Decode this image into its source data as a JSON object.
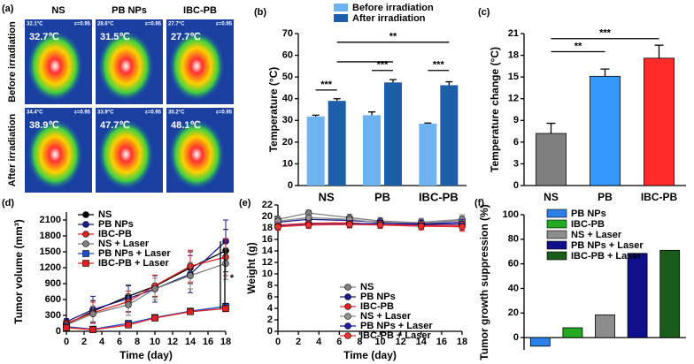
{
  "panel_labels": [
    "(a)",
    "(b)",
    "(c)",
    "(d)",
    "(e)",
    "(f)"
  ],
  "thermal_images": {
    "columns": [
      "NS",
      "PB NPs",
      "IBC-PB"
    ],
    "rows": [
      "Before irradiation",
      "After irradiation"
    ],
    "readings": [
      [
        "32.7℃",
        "31.5℃",
        "27.7℃"
      ],
      [
        "38.9℃",
        "47.7℃",
        "48.1℃"
      ]
    ],
    "corner": [
      [
        "32.1°C",
        "28.6°C",
        "27.7°C"
      ],
      [
        "34.4°C",
        "33.9°C",
        "30.2°C"
      ]
    ],
    "emissivity": "ε=0.95"
  },
  "chart_data": [
    {
      "type": "bar",
      "ylabel": "Temperature (°C)",
      "categories": [
        "NS",
        "PB",
        "IBC-PB"
      ],
      "series": [
        {
          "name": "Before irradiation",
          "color": "#6db3f2",
          "values": [
            31.8,
            32.4,
            28.5
          ],
          "errors": [
            0.6,
            1.5,
            0.3
          ]
        },
        {
          "name": "After irradiation",
          "color": "#1c5fa8",
          "values": [
            39.0,
            47.5,
            46.2
          ],
          "errors": [
            1.0,
            1.3,
            1.6
          ]
        }
      ],
      "ylim": [
        0,
        70
      ],
      "yticks": [
        0,
        10,
        20,
        30,
        40,
        50,
        60,
        70
      ],
      "annotations": [
        "***",
        "**",
        "***",
        "***"
      ]
    },
    {
      "type": "bar",
      "ylabel": "Temperature change (°C)",
      "categories": [
        "NS",
        "PB",
        "IBC-PB"
      ],
      "values": [
        7.2,
        15.1,
        17.6
      ],
      "errors": [
        1.4,
        1.0,
        1.8
      ],
      "colors": [
        "#7f7f7f",
        "#3399ff",
        "#ff2a2a"
      ],
      "ylim": [
        0,
        21
      ],
      "yticks": [
        0,
        3,
        6,
        9,
        12,
        15,
        18,
        21
      ],
      "annotations": [
        "**",
        "***"
      ]
    },
    {
      "type": "line",
      "xlabel": "Time (day)",
      "ylabel": "Tumor volume (mm³)",
      "x": [
        0,
        3,
        7,
        10,
        14,
        18
      ],
      "series": [
        {
          "name": "NS",
          "color": "#000000",
          "marker": "circle",
          "values": [
            130,
            380,
            660,
            850,
            1200,
            1520
          ],
          "errors": [
            60,
            200,
            200,
            200,
            300,
            400
          ]
        },
        {
          "name": "PB NPs",
          "color": "#1a1a8c",
          "marker": "circle",
          "values": [
            180,
            410,
            620,
            800,
            1080,
            1700
          ],
          "errors": [
            60,
            250,
            250,
            250,
            350,
            400
          ]
        },
        {
          "name": "IBC-PB",
          "color": "#e02020",
          "marker": "circle",
          "values": [
            150,
            350,
            560,
            860,
            1230,
            1400
          ],
          "errors": [
            50,
            200,
            200,
            200,
            300,
            350
          ]
        },
        {
          "name": "NS + Laser",
          "color": "#808080",
          "marker": "circle",
          "values": [
            120,
            330,
            500,
            800,
            1050,
            1280
          ],
          "errors": [
            40,
            150,
            200,
            200,
            250,
            300
          ]
        },
        {
          "name": "PB NPs + Laser",
          "color": "#1f4fd0",
          "marker": "square",
          "values": [
            90,
            40,
            150,
            260,
            380,
            470
          ],
          "errors": [
            30,
            20,
            40,
            50,
            50,
            60
          ]
        },
        {
          "name": "IBC-PB + Laser",
          "color": "#e02020",
          "marker": "square",
          "values": [
            70,
            30,
            120,
            250,
            370,
            430
          ],
          "errors": [
            30,
            20,
            40,
            50,
            50,
            60
          ]
        }
      ],
      "xlim": [
        0,
        18
      ],
      "xticks": [
        0,
        2,
        4,
        6,
        8,
        10,
        12,
        14,
        16,
        18
      ],
      "ylim": [
        0,
        2250
      ],
      "yticks": [
        0,
        300,
        600,
        900,
        1200,
        1500,
        1800,
        2100
      ],
      "annotations": [
        "*"
      ]
    },
    {
      "type": "line",
      "xlabel": "Time (day)",
      "ylabel": "Weight (g)",
      "x": [
        0,
        3,
        7,
        10,
        14,
        18
      ],
      "series": [
        {
          "name": "NS",
          "color": "#808080",
          "marker": "circle",
          "values": [
            19.5,
            20.6,
            19.8,
            19.2,
            18.9,
            19.3
          ],
          "errors": [
            0.6,
            0.5,
            0.6,
            0.6,
            0.7,
            0.8
          ]
        },
        {
          "name": "PB NPs",
          "color": "#1a1a8c",
          "marker": "circle",
          "values": [
            19.0,
            19.5,
            19.3,
            19.0,
            18.7,
            19.0
          ],
          "errors": [
            0.6,
            0.6,
            0.6,
            0.6,
            0.7,
            0.8
          ]
        },
        {
          "name": "IBC-PB",
          "color": "#e02020",
          "marker": "circle",
          "values": [
            18.5,
            18.8,
            18.9,
            18.6,
            18.5,
            18.4
          ],
          "errors": [
            0.6,
            0.6,
            0.6,
            0.6,
            0.7,
            0.8
          ]
        },
        {
          "name": "NS + Laser",
          "color": "#909090",
          "marker": "circle",
          "values": [
            19.2,
            19.8,
            19.5,
            18.9,
            19.0,
            19.5
          ],
          "errors": [
            0.6,
            0.6,
            0.6,
            0.6,
            0.7,
            0.8
          ]
        },
        {
          "name": "PB NPs + Laser",
          "color": "#1f1fa0",
          "marker": "circle",
          "values": [
            18.3,
            18.6,
            18.7,
            18.8,
            18.6,
            18.7
          ],
          "errors": [
            0.6,
            0.6,
            0.6,
            0.6,
            0.7,
            0.8
          ]
        },
        {
          "name": "IBC-PB + Laser",
          "color": "#f03030",
          "marker": "circle",
          "values": [
            18.2,
            18.5,
            18.6,
            18.5,
            18.3,
            18.2
          ],
          "errors": [
            0.6,
            0.6,
            0.6,
            0.6,
            0.7,
            0.8
          ]
        }
      ],
      "xlim": [
        0,
        18
      ],
      "xticks": [
        0,
        2,
        4,
        6,
        8,
        10,
        12,
        14,
        16,
        18
      ],
      "ylim": [
        0,
        22
      ],
      "yticks": [
        0,
        2,
        4,
        6,
        8,
        10,
        12,
        14,
        16,
        18,
        20,
        22
      ]
    },
    {
      "type": "bar",
      "ylabel": "Tumor growth suppression (%)",
      "categories": [
        "PB NPs",
        "IBC-PB",
        "NS + Laser",
        "PB NPs + Laser",
        "IBC-PB + Laser"
      ],
      "values": [
        -7,
        8,
        18.5,
        68.5,
        71
      ],
      "colors": [
        "#2f7fe8",
        "#22aa22",
        "#8c8c8c",
        "#10108c",
        "#1a5c1a"
      ],
      "ylim": [
        -10,
        100
      ],
      "yticks": [
        0,
        20,
        40,
        60,
        80,
        100
      ],
      "legend": "upper left"
    }
  ]
}
